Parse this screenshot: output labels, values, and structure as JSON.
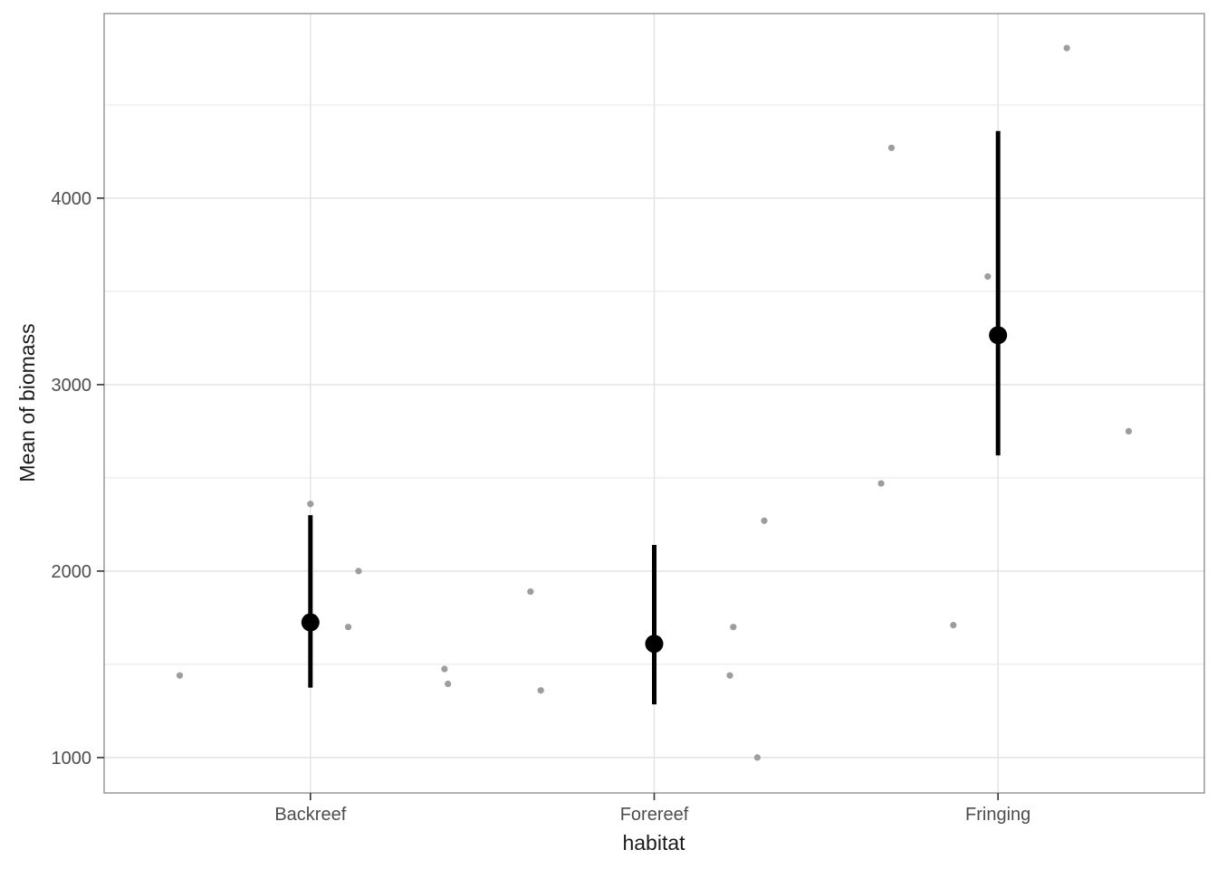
{
  "chart_data": {
    "type": "scatter",
    "title": "",
    "xlabel": "habitat",
    "ylabel": "Mean of biomass",
    "categories": [
      "Backreef",
      "Forereef",
      "Fringing"
    ],
    "category_positions": [
      1,
      2,
      3
    ],
    "xlim": [
      0.4,
      3.6
    ],
    "ylim": [
      810,
      4990
    ],
    "y_major_ticks": [
      1000,
      2000,
      3000,
      4000
    ],
    "y_tick_labels": [
      "1000",
      "2000",
      "3000",
      "4000"
    ],
    "y_minor_gridlines": [
      1500,
      2500,
      3500,
      4500
    ],
    "grid": "horizontal major+minor, vertical major at each category; panel border on; no legend",
    "legend": "none",
    "jitter_points": [
      {
        "group": "Backreef",
        "x": 0.62,
        "y": 1440
      },
      {
        "group": "Backreef",
        "x": 1.0,
        "y": 2360
      },
      {
        "group": "Backreef",
        "x": 1.11,
        "y": 1700
      },
      {
        "group": "Backreef",
        "x": 1.14,
        "y": 2000
      },
      {
        "group": "Backreef",
        "x": 1.39,
        "y": 1475
      },
      {
        "group": "Backreef",
        "x": 1.4,
        "y": 1395
      },
      {
        "group": "Forereef",
        "x": 1.64,
        "y": 1890
      },
      {
        "group": "Forereef",
        "x": 1.67,
        "y": 1360
      },
      {
        "group": "Forereef",
        "x": 2.22,
        "y": 1440
      },
      {
        "group": "Forereef",
        "x": 2.23,
        "y": 1700
      },
      {
        "group": "Forereef",
        "x": 2.3,
        "y": 1000
      },
      {
        "group": "Forereef",
        "x": 2.32,
        "y": 2270
      },
      {
        "group": "Fringing",
        "x": 2.66,
        "y": 2470
      },
      {
        "group": "Fringing",
        "x": 2.69,
        "y": 4270
      },
      {
        "group": "Fringing",
        "x": 2.87,
        "y": 1710
      },
      {
        "group": "Fringing",
        "x": 2.97,
        "y": 3580
      },
      {
        "group": "Fringing",
        "x": 3.2,
        "y": 4805
      },
      {
        "group": "Fringing",
        "x": 3.38,
        "y": 2750
      }
    ],
    "means": [
      {
        "group": "Backreef",
        "x": 1,
        "mean": 1725,
        "lower": 1375,
        "upper": 2300
      },
      {
        "group": "Forereef",
        "x": 2,
        "mean": 1610,
        "lower": 1285,
        "upper": 2140
      },
      {
        "group": "Fringing",
        "x": 3,
        "mean": 3265,
        "lower": 2620,
        "upper": 4360
      }
    ],
    "colors": {
      "jitter_point": "#9d9d9d",
      "mean_point": "#000000",
      "error_bar": "#000000",
      "grid_major": "#e2e2e2",
      "grid_minor": "#ebebeb",
      "panel_border": "#999999",
      "tick_mark": "#333333",
      "tick_label": "#4d4d4d",
      "axis_title": "#1a1a1a",
      "background": "#ffffff"
    }
  }
}
